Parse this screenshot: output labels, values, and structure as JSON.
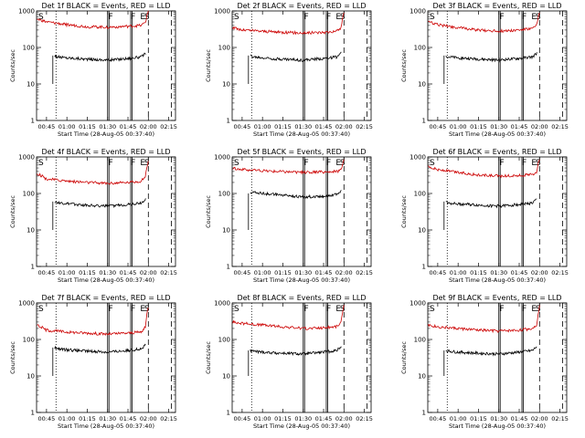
{
  "figure": {
    "x_tick_labels": [
      "00:45",
      "01:00",
      "01:15",
      "01:30",
      "01:45",
      "02:00",
      "02:15"
    ],
    "y_tick_labels": [
      "1",
      "10",
      "100",
      "1000"
    ],
    "ylabel": "Counts/sec",
    "xlabel": "Start Time (28-Aug-05 00:37:40)",
    "marker_labels": [
      "S",
      "F",
      "F",
      "E",
      "S"
    ],
    "colors": {
      "events": "#000000",
      "lld": "#cc0000"
    }
  },
  "chart_data": [
    {
      "type": "line",
      "title": "Det 1f BLACK = Events, RED = LLD",
      "xlabel": "Start Time (28-Aug-05 00:37:40)",
      "ylabel": "Counts/sec",
      "ylim": [
        1,
        1000
      ],
      "y_scale": "log",
      "xlim": [
        "00:37:40",
        "02:20:00"
      ],
      "series": [
        {
          "name": "Events",
          "color": "#000000",
          "x": [
            "00:51",
            "00:53",
            "01:00",
            "01:15",
            "01:30",
            "01:45",
            "01:55",
            "01:58"
          ],
          "values": [
            60,
            55,
            52,
            48,
            45,
            50,
            55,
            70
          ]
        },
        {
          "name": "LLD",
          "color": "#cc0000",
          "x": [
            "00:38",
            "00:45",
            "01:00",
            "01:15",
            "01:30",
            "01:45",
            "01:55",
            "01:58",
            "02:00"
          ],
          "values": [
            600,
            500,
            420,
            370,
            360,
            380,
            400,
            500,
            1000
          ]
        }
      ]
    },
    {
      "type": "line",
      "title": "Det 2f BLACK = Events, RED = LLD",
      "xlabel": "Start Time (28-Aug-05 00:37:40)",
      "ylabel": "Counts/sec",
      "ylim": [
        1,
        1000
      ],
      "y_scale": "log",
      "xlim": [
        "00:37:40",
        "02:20:00"
      ],
      "series": [
        {
          "name": "Events",
          "color": "#000000",
          "x": [
            "00:51",
            "00:53",
            "01:00",
            "01:15",
            "01:30",
            "01:45",
            "01:55",
            "01:58"
          ],
          "values": [
            60,
            55,
            52,
            48,
            45,
            50,
            55,
            70
          ]
        },
        {
          "name": "LLD",
          "color": "#cc0000",
          "x": [
            "00:38",
            "00:45",
            "01:00",
            "01:15",
            "01:30",
            "01:45",
            "01:55",
            "01:58",
            "02:00"
          ],
          "values": [
            350,
            300,
            280,
            260,
            250,
            260,
            280,
            350,
            900
          ]
        }
      ]
    },
    {
      "type": "line",
      "title": "Det 3f BLACK = Events, RED = LLD",
      "xlabel": "Start Time (28-Aug-05 00:37:40)",
      "ylabel": "Counts/sec",
      "ylim": [
        1,
        1000
      ],
      "y_scale": "log",
      "xlim": [
        "00:37:40",
        "02:20:00"
      ],
      "series": [
        {
          "name": "Events",
          "color": "#000000",
          "x": [
            "00:51",
            "00:53",
            "01:00",
            "01:15",
            "01:30",
            "01:45",
            "01:55",
            "01:58"
          ],
          "values": [
            60,
            55,
            52,
            48,
            45,
            50,
            55,
            70
          ]
        },
        {
          "name": "LLD",
          "color": "#cc0000",
          "x": [
            "00:38",
            "00:45",
            "01:00",
            "01:15",
            "01:30",
            "01:45",
            "01:55",
            "01:58",
            "02:00"
          ],
          "values": [
            500,
            420,
            350,
            300,
            280,
            300,
            330,
            400,
            900
          ]
        }
      ]
    },
    {
      "type": "line",
      "title": "Det 4f BLACK = Events, RED = LLD",
      "xlabel": "Start Time (28-Aug-05 00:37:40)",
      "ylabel": "Counts/sec",
      "ylim": [
        1,
        1000
      ],
      "y_scale": "log",
      "xlim": [
        "00:37:40",
        "02:20:00"
      ],
      "series": [
        {
          "name": "Events",
          "color": "#000000",
          "x": [
            "00:51",
            "00:53",
            "01:00",
            "01:15",
            "01:30",
            "01:45",
            "01:55",
            "01:58"
          ],
          "values": [
            60,
            55,
            52,
            48,
            45,
            50,
            55,
            70
          ]
        },
        {
          "name": "LLD",
          "color": "#cc0000",
          "x": [
            "00:38",
            "00:45",
            "01:00",
            "01:15",
            "01:30",
            "01:45",
            "01:55",
            "01:58",
            "02:00"
          ],
          "values": [
            350,
            250,
            220,
            200,
            190,
            200,
            220,
            300,
            800
          ]
        }
      ]
    },
    {
      "type": "line",
      "title": "Det 5f BLACK = Events, RED = LLD",
      "xlabel": "Start Time (28-Aug-05 00:37:40)",
      "ylabel": "Counts/sec",
      "ylim": [
        1,
        1000
      ],
      "y_scale": "log",
      "xlim": [
        "00:37:40",
        "02:20:00"
      ],
      "series": [
        {
          "name": "Events",
          "color": "#000000",
          "x": [
            "00:51",
            "00:53",
            "01:00",
            "01:15",
            "01:30",
            "01:45",
            "01:55",
            "01:58"
          ],
          "values": [
            100,
            110,
            100,
            90,
            80,
            85,
            95,
            120
          ]
        },
        {
          "name": "LLD",
          "color": "#cc0000",
          "x": [
            "00:38",
            "00:45",
            "01:00",
            "01:15",
            "01:30",
            "01:45",
            "01:55",
            "01:58",
            "02:00"
          ],
          "values": [
            500,
            450,
            420,
            400,
            380,
            390,
            400,
            450,
            900
          ]
        }
      ]
    },
    {
      "type": "line",
      "title": "Det 6f BLACK = Events, RED = LLD",
      "xlabel": "Start Time (28-Aug-05 00:37:40)",
      "ylabel": "Counts/sec",
      "ylim": [
        1,
        1000
      ],
      "y_scale": "log",
      "xlim": [
        "00:37:40",
        "02:20:00"
      ],
      "series": [
        {
          "name": "Events",
          "color": "#000000",
          "x": [
            "00:51",
            "00:53",
            "01:00",
            "01:15",
            "01:30",
            "01:45",
            "01:55",
            "01:58"
          ],
          "values": [
            60,
            55,
            52,
            48,
            45,
            50,
            55,
            70
          ]
        },
        {
          "name": "LLD",
          "color": "#cc0000",
          "x": [
            "00:38",
            "00:45",
            "01:00",
            "01:15",
            "01:30",
            "01:45",
            "01:55",
            "01:58",
            "02:00"
          ],
          "values": [
            550,
            450,
            380,
            320,
            300,
            310,
            330,
            400,
            900
          ]
        }
      ]
    },
    {
      "type": "line",
      "title": "Det 7f BLACK = Events, RED = LLD",
      "xlabel": "Start Time (28-Aug-05 00:37:40)",
      "ylabel": "Counts/sec",
      "ylim": [
        1,
        1000
      ],
      "y_scale": "log",
      "xlim": [
        "00:37:40",
        "02:20:00"
      ],
      "series": [
        {
          "name": "Events",
          "color": "#000000",
          "x": [
            "00:51",
            "00:53",
            "01:00",
            "01:15",
            "01:30",
            "01:45",
            "01:55",
            "01:58"
          ],
          "values": [
            60,
            55,
            52,
            48,
            45,
            50,
            55,
            70
          ]
        },
        {
          "name": "LLD",
          "color": "#cc0000",
          "x": [
            "00:38",
            "00:45",
            "01:00",
            "01:15",
            "01:30",
            "01:45",
            "01:55",
            "01:58",
            "02:00"
          ],
          "values": [
            250,
            180,
            160,
            150,
            140,
            150,
            160,
            220,
            800
          ]
        }
      ]
    },
    {
      "type": "line",
      "title": "Det 8f BLACK = Events, RED = LLD",
      "xlabel": "Start Time (28-Aug-05 00:37:40)",
      "ylabel": "Counts/sec",
      "ylim": [
        1,
        1000
      ],
      "y_scale": "log",
      "xlim": [
        "00:37:40",
        "02:20:00"
      ],
      "series": [
        {
          "name": "Events",
          "color": "#000000",
          "x": [
            "00:51",
            "00:53",
            "01:00",
            "01:15",
            "01:30",
            "01:45",
            "01:55",
            "01:58"
          ],
          "values": [
            50,
            48,
            45,
            42,
            40,
            45,
            50,
            65
          ]
        },
        {
          "name": "LLD",
          "color": "#cc0000",
          "x": [
            "00:38",
            "00:45",
            "01:00",
            "01:15",
            "01:30",
            "01:45",
            "01:55",
            "01:58",
            "02:00"
          ],
          "values": [
            300,
            280,
            250,
            220,
            200,
            210,
            230,
            300,
            800
          ]
        }
      ]
    },
    {
      "type": "line",
      "title": "Det 9f BLACK = Events, RED = LLD",
      "xlabel": "Start Time (28-Aug-05 00:37:40)",
      "ylabel": "Counts/sec",
      "ylim": [
        1,
        1000
      ],
      "y_scale": "log",
      "xlim": [
        "00:37:40",
        "02:20:00"
      ],
      "series": [
        {
          "name": "Events",
          "color": "#000000",
          "x": [
            "00:51",
            "00:53",
            "01:00",
            "01:15",
            "01:30",
            "01:45",
            "01:55",
            "01:58"
          ],
          "values": [
            50,
            48,
            45,
            42,
            40,
            45,
            50,
            65
          ]
        },
        {
          "name": "LLD",
          "color": "#cc0000",
          "x": [
            "00:38",
            "00:45",
            "01:00",
            "01:15",
            "01:30",
            "01:45",
            "01:55",
            "01:58",
            "02:00"
          ],
          "values": [
            250,
            220,
            200,
            180,
            170,
            180,
            200,
            260,
            800
          ]
        }
      ]
    }
  ]
}
